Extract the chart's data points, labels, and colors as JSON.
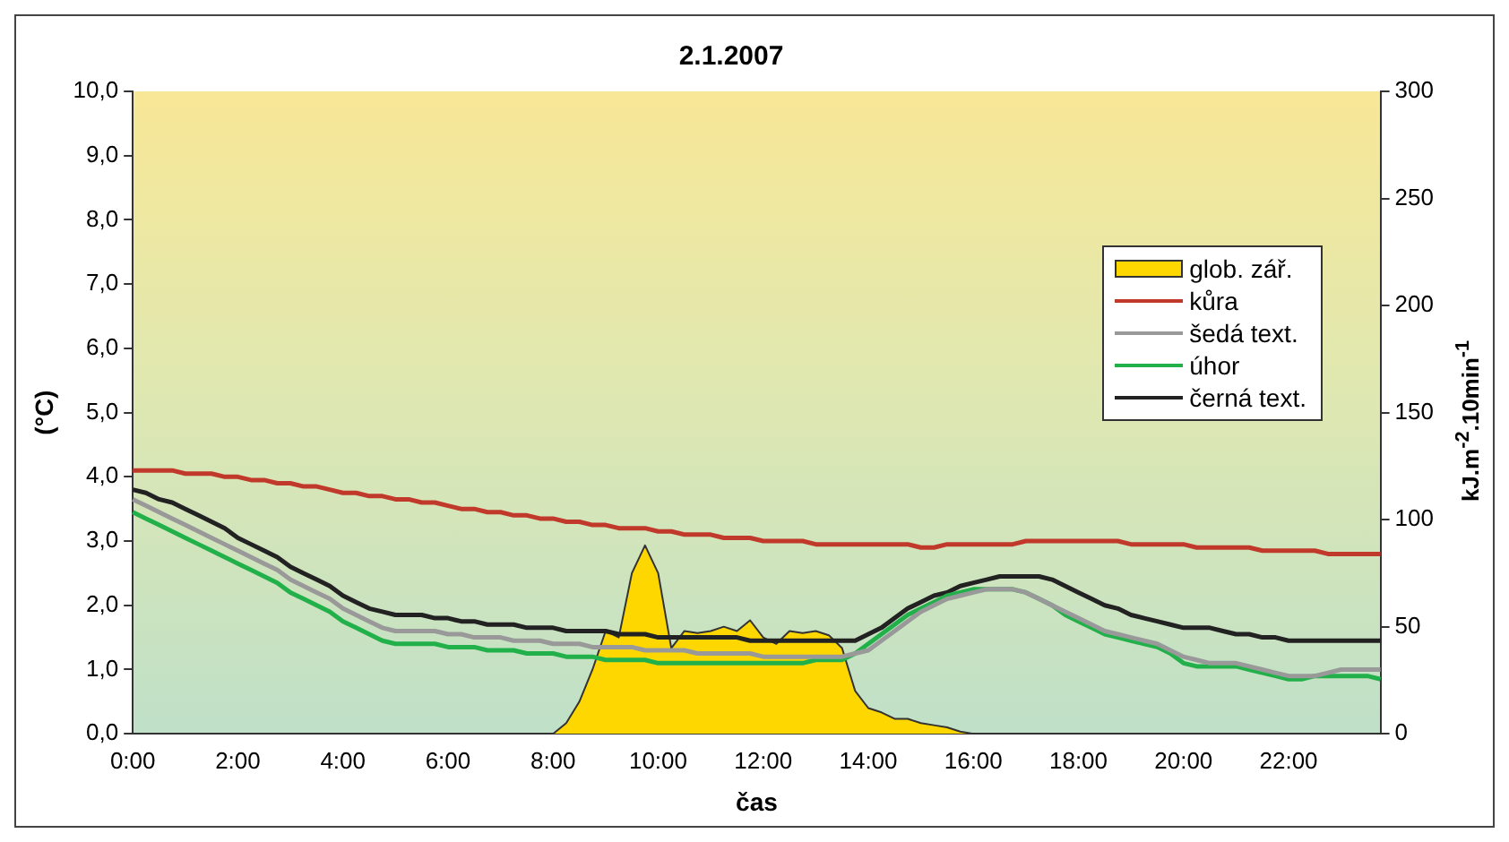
{
  "chart_data": {
    "type": "line",
    "title": "2.1.2007",
    "xlabel": "čas",
    "ylabel": "(°C)",
    "y2label": "kJ.m$^{-2}$.10min$^{-1}$",
    "categories": [
      "0:00",
      null,
      null,
      null,
      null,
      null,
      null,
      null,
      "2:00",
      null,
      null,
      null,
      null,
      null,
      null,
      null,
      "4:00",
      null,
      null,
      null,
      null,
      null,
      null,
      null,
      "6:00",
      null,
      null,
      null,
      null,
      null,
      null,
      null,
      "8:00",
      null,
      null,
      null,
      null,
      null,
      null,
      null,
      "10:00",
      null,
      null,
      null,
      null,
      null,
      null,
      null,
      "12:00",
      null,
      null,
      null,
      null,
      null,
      null,
      null,
      "14:00",
      null,
      null,
      null,
      null,
      null,
      null,
      null,
      "16:00",
      null,
      null,
      null,
      null,
      null,
      null,
      null,
      "18:00",
      null,
      null,
      null,
      null,
      null,
      null,
      null,
      "20:00",
      null,
      null,
      null,
      null,
      null,
      null,
      null,
      "22:00",
      null,
      null,
      null,
      null,
      null,
      null,
      null
    ],
    "ylim": [
      0,
      10
    ],
    "yticks": [
      {
        "value": 0,
        "label": "0,0"
      },
      {
        "value": 1,
        "label": "1,0"
      },
      {
        "value": 2,
        "label": "2,0"
      },
      {
        "value": 3,
        "label": "3,0"
      },
      {
        "value": 4,
        "label": "4,0"
      },
      {
        "value": 5,
        "label": "5,0"
      },
      {
        "value": 6,
        "label": "6,0"
      },
      {
        "value": 7,
        "label": "7,0"
      },
      {
        "value": 8,
        "label": "8,0"
      },
      {
        "value": 9,
        "label": "9,0"
      },
      {
        "value": 10,
        "label": "10,0"
      }
    ],
    "y2lim": [
      0,
      300
    ],
    "y2ticks": [
      0,
      50,
      100,
      150,
      200,
      250,
      300
    ],
    "legend": "right",
    "grid": false,
    "series": [
      {
        "name": "glob. zář.",
        "type": "area",
        "axis": "y2",
        "color": "#ffd700",
        "values": [
          0,
          0,
          0,
          0,
          0,
          0,
          0,
          0,
          0,
          0,
          0,
          0,
          0,
          0,
          0,
          0,
          0,
          0,
          0,
          0,
          0,
          0,
          0,
          0,
          0,
          0,
          0,
          0,
          0,
          0,
          0,
          0,
          0,
          5,
          15,
          30,
          48,
          45,
          75,
          88,
          75,
          40,
          48,
          47,
          48,
          50,
          48,
          53,
          45,
          42,
          48,
          47,
          48,
          46,
          40,
          20,
          12,
          10,
          7,
          7,
          5,
          4,
          3,
          1,
          0,
          0,
          0,
          0,
          0,
          0,
          0,
          0,
          0,
          0,
          0,
          0,
          0,
          0,
          0,
          0,
          0,
          0,
          0,
          0,
          0,
          0,
          0,
          0,
          0,
          0,
          0,
          0,
          0,
          0,
          0,
          0
        ]
      },
      {
        "name": "kůra",
        "color": "#c0392b",
        "values": [
          4.1,
          4.1,
          4.1,
          4.1,
          4.05,
          4.05,
          4.05,
          4.0,
          4.0,
          3.95,
          3.95,
          3.9,
          3.9,
          3.85,
          3.85,
          3.8,
          3.75,
          3.75,
          3.7,
          3.7,
          3.65,
          3.65,
          3.6,
          3.6,
          3.55,
          3.5,
          3.5,
          3.45,
          3.45,
          3.4,
          3.4,
          3.35,
          3.35,
          3.3,
          3.3,
          3.25,
          3.25,
          3.2,
          3.2,
          3.2,
          3.15,
          3.15,
          3.1,
          3.1,
          3.1,
          3.05,
          3.05,
          3.05,
          3.0,
          3.0,
          3.0,
          3.0,
          2.95,
          2.95,
          2.95,
          2.95,
          2.95,
          2.95,
          2.95,
          2.95,
          2.9,
          2.9,
          2.95,
          2.95,
          2.95,
          2.95,
          2.95,
          2.95,
          3.0,
          3.0,
          3.0,
          3.0,
          3.0,
          3.0,
          3.0,
          3.0,
          2.95,
          2.95,
          2.95,
          2.95,
          2.95,
          2.9,
          2.9,
          2.9,
          2.9,
          2.9,
          2.85,
          2.85,
          2.85,
          2.85,
          2.85,
          2.8,
          2.8,
          2.8,
          2.8,
          2.8
        ]
      },
      {
        "name": "šedá text.",
        "color": "#999999",
        "values": [
          3.65,
          3.55,
          3.45,
          3.35,
          3.25,
          3.15,
          3.05,
          2.95,
          2.85,
          2.75,
          2.65,
          2.55,
          2.4,
          2.3,
          2.2,
          2.1,
          1.95,
          1.85,
          1.75,
          1.65,
          1.6,
          1.6,
          1.6,
          1.6,
          1.55,
          1.55,
          1.5,
          1.5,
          1.5,
          1.45,
          1.45,
          1.45,
          1.4,
          1.4,
          1.4,
          1.35,
          1.35,
          1.35,
          1.35,
          1.3,
          1.3,
          1.3,
          1.3,
          1.25,
          1.25,
          1.25,
          1.25,
          1.25,
          1.2,
          1.2,
          1.2,
          1.2,
          1.2,
          1.2,
          1.2,
          1.25,
          1.3,
          1.45,
          1.6,
          1.75,
          1.9,
          2.0,
          2.1,
          2.15,
          2.2,
          2.25,
          2.25,
          2.25,
          2.2,
          2.1,
          2.0,
          1.9,
          1.8,
          1.7,
          1.6,
          1.55,
          1.5,
          1.45,
          1.4,
          1.3,
          1.2,
          1.15,
          1.1,
          1.1,
          1.1,
          1.05,
          1.0,
          0.95,
          0.9,
          0.9,
          0.9,
          0.95,
          1.0,
          1.0,
          1.0,
          1.0
        ]
      },
      {
        "name": "úhor",
        "color": "#22b04a",
        "values": [
          3.45,
          3.35,
          3.25,
          3.15,
          3.05,
          2.95,
          2.85,
          2.75,
          2.65,
          2.55,
          2.45,
          2.35,
          2.2,
          2.1,
          2.0,
          1.9,
          1.75,
          1.65,
          1.55,
          1.45,
          1.4,
          1.4,
          1.4,
          1.4,
          1.35,
          1.35,
          1.35,
          1.3,
          1.3,
          1.3,
          1.25,
          1.25,
          1.25,
          1.2,
          1.2,
          1.2,
          1.15,
          1.15,
          1.15,
          1.15,
          1.1,
          1.1,
          1.1,
          1.1,
          1.1,
          1.1,
          1.1,
          1.1,
          1.1,
          1.1,
          1.1,
          1.1,
          1.15,
          1.15,
          1.15,
          1.25,
          1.4,
          1.55,
          1.7,
          1.85,
          1.95,
          2.05,
          2.15,
          2.2,
          2.25,
          2.25,
          2.25,
          2.25,
          2.2,
          2.1,
          2.0,
          1.85,
          1.75,
          1.65,
          1.55,
          1.5,
          1.45,
          1.4,
          1.35,
          1.25,
          1.1,
          1.05,
          1.05,
          1.05,
          1.05,
          1.0,
          0.95,
          0.9,
          0.85,
          0.85,
          0.9,
          0.9,
          0.9,
          0.9,
          0.9,
          0.85
        ]
      },
      {
        "name": "černá text.",
        "color": "#222222",
        "values": [
          3.8,
          3.75,
          3.65,
          3.6,
          3.5,
          3.4,
          3.3,
          3.2,
          3.05,
          2.95,
          2.85,
          2.75,
          2.6,
          2.5,
          2.4,
          2.3,
          2.15,
          2.05,
          1.95,
          1.9,
          1.85,
          1.85,
          1.85,
          1.8,
          1.8,
          1.75,
          1.75,
          1.7,
          1.7,
          1.7,
          1.65,
          1.65,
          1.65,
          1.6,
          1.6,
          1.6,
          1.6,
          1.55,
          1.55,
          1.55,
          1.5,
          1.5,
          1.5,
          1.5,
          1.5,
          1.5,
          1.5,
          1.45,
          1.45,
          1.45,
          1.45,
          1.45,
          1.45,
          1.45,
          1.45,
          1.45,
          1.55,
          1.65,
          1.8,
          1.95,
          2.05,
          2.15,
          2.2,
          2.3,
          2.35,
          2.4,
          2.45,
          2.45,
          2.45,
          2.45,
          2.4,
          2.3,
          2.2,
          2.1,
          2.0,
          1.95,
          1.85,
          1.8,
          1.75,
          1.7,
          1.65,
          1.65,
          1.65,
          1.6,
          1.55,
          1.55,
          1.5,
          1.5,
          1.45,
          1.45,
          1.45,
          1.45,
          1.45,
          1.45,
          1.45,
          1.45
        ]
      }
    ]
  }
}
